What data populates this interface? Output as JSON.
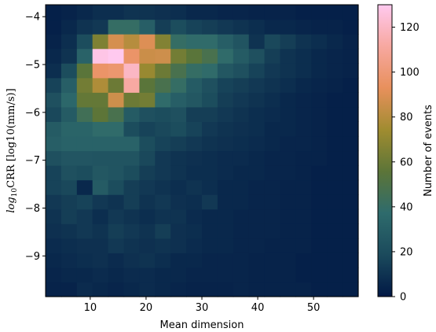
{
  "chart_data": {
    "type": "heatmap",
    "title": "",
    "xlabel": "Mean dimension",
    "ylabel": "log₁₀CRR  [log10(mm/s)]",
    "ylabel_parts": {
      "main": "log",
      "sub": "10",
      "rest": "CRR",
      "unit": "[log10(mm/s)]"
    },
    "colorbar_label": "Number of events",
    "xlim": [
      2,
      58
    ],
    "ylim": [
      -9.85,
      -3.75
    ],
    "x_ticks": [
      10,
      20,
      30,
      40,
      50
    ],
    "x_tick_labels": [
      "10",
      "20",
      "30",
      "40",
      "50"
    ],
    "y_ticks": [
      -4,
      -5,
      -6,
      -7,
      -8,
      -9
    ],
    "y_tick_labels": [
      "−4",
      "−5",
      "−6",
      "−7",
      "−8",
      "−9"
    ],
    "colorbar_range": [
      0,
      130
    ],
    "colorbar_ticks": [
      0,
      20,
      40,
      60,
      80,
      100,
      120
    ],
    "colorbar_tick_labels": [
      "0",
      "20",
      "40",
      "60",
      "80",
      "100",
      "120"
    ],
    "colormap_stops": [
      "#011845",
      "#1b4a5c",
      "#2e6b6c",
      "#5c7538",
      "#a08c30",
      "#e8905c",
      "#f7a8a0",
      "#ffc9ef"
    ],
    "x_bins": {
      "start": 2,
      "count": 20,
      "width": 2.8
    },
    "y_bins": {
      "start": -9.85,
      "count": 20,
      "width": 0.305
    },
    "values": [
      [
        4,
        4,
        7,
        6,
        5,
        6,
        7,
        6,
        5,
        4,
        4,
        4,
        5,
        4,
        4,
        4,
        4,
        3,
        3,
        3
      ],
      [
        5,
        6,
        6,
        7,
        6,
        7,
        7,
        6,
        6,
        5,
        5,
        5,
        5,
        4,
        4,
        4,
        3,
        3,
        3,
        3
      ],
      [
        6,
        7,
        8,
        9,
        7,
        9,
        10,
        8,
        6,
        6,
        5,
        5,
        5,
        4,
        4,
        4,
        3,
        3,
        3,
        3
      ],
      [
        7,
        8,
        9,
        9,
        12,
        10,
        9,
        10,
        9,
        7,
        6,
        6,
        5,
        5,
        4,
        4,
        4,
        3,
        3,
        3
      ],
      [
        9,
        10,
        12,
        10,
        14,
        12,
        10,
        14,
        9,
        8,
        6,
        6,
        5,
        5,
        5,
        4,
        4,
        3,
        3,
        3
      ],
      [
        10,
        14,
        12,
        8,
        12,
        10,
        8,
        10,
        10,
        7,
        6,
        6,
        5,
        5,
        5,
        4,
        4,
        3,
        3,
        3
      ],
      [
        12,
        14,
        16,
        12,
        10,
        14,
        10,
        12,
        9,
        8,
        12,
        6,
        6,
        5,
        5,
        4,
        4,
        3,
        3,
        3
      ],
      [
        16,
        18,
        6,
        28,
        20,
        14,
        12,
        10,
        8,
        10,
        8,
        6,
        6,
        5,
        5,
        4,
        4,
        3,
        3,
        3
      ],
      [
        16,
        22,
        20,
        26,
        24,
        20,
        14,
        12,
        10,
        8,
        8,
        7,
        6,
        6,
        5,
        5,
        4,
        3,
        3,
        3
      ],
      [
        22,
        25,
        25,
        24,
        24,
        24,
        18,
        12,
        10,
        9,
        8,
        7,
        7,
        6,
        5,
        5,
        4,
        4,
        3,
        3
      ],
      [
        30,
        32,
        32,
        32,
        32,
        32,
        20,
        16,
        14,
        12,
        10,
        9,
        8,
        7,
        6,
        5,
        5,
        4,
        3,
        3
      ],
      [
        28,
        33,
        33,
        38,
        38,
        20,
        16,
        18,
        20,
        16,
        12,
        10,
        9,
        8,
        6,
        6,
        5,
        4,
        3,
        3
      ],
      [
        18,
        28,
        45,
        56,
        48,
        28,
        22,
        20,
        22,
        14,
        14,
        12,
        10,
        8,
        7,
        6,
        5,
        4,
        3,
        3
      ],
      [
        22,
        35,
        58,
        58,
        86,
        60,
        62,
        38,
        30,
        26,
        20,
        14,
        12,
        10,
        8,
        6,
        5,
        4,
        3,
        3
      ],
      [
        16,
        30,
        62,
        78,
        60,
        112,
        55,
        48,
        40,
        28,
        22,
        16,
        14,
        12,
        10,
        8,
        6,
        5,
        4,
        3
      ],
      [
        8,
        20,
        55,
        96,
        98,
        120,
        72,
        60,
        48,
        40,
        38,
        26,
        22,
        16,
        12,
        10,
        8,
        6,
        5,
        4
      ],
      [
        6,
        10,
        32,
        128,
        130,
        96,
        85,
        86,
        62,
        55,
        48,
        38,
        28,
        22,
        14,
        10,
        8,
        6,
        5,
        4
      ],
      [
        4,
        8,
        20,
        65,
        88,
        80,
        90,
        66,
        40,
        38,
        38,
        30,
        24,
        10,
        18,
        14,
        10,
        8,
        6,
        4
      ],
      [
        3,
        6,
        10,
        12,
        40,
        40,
        30,
        14,
        20,
        16,
        14,
        12,
        10,
        8,
        6,
        6,
        5,
        4,
        4,
        3
      ],
      [
        3,
        4,
        6,
        8,
        8,
        10,
        10,
        9,
        8,
        6,
        6,
        5,
        5,
        4,
        4,
        4,
        3,
        3,
        3,
        3
      ]
    ]
  }
}
